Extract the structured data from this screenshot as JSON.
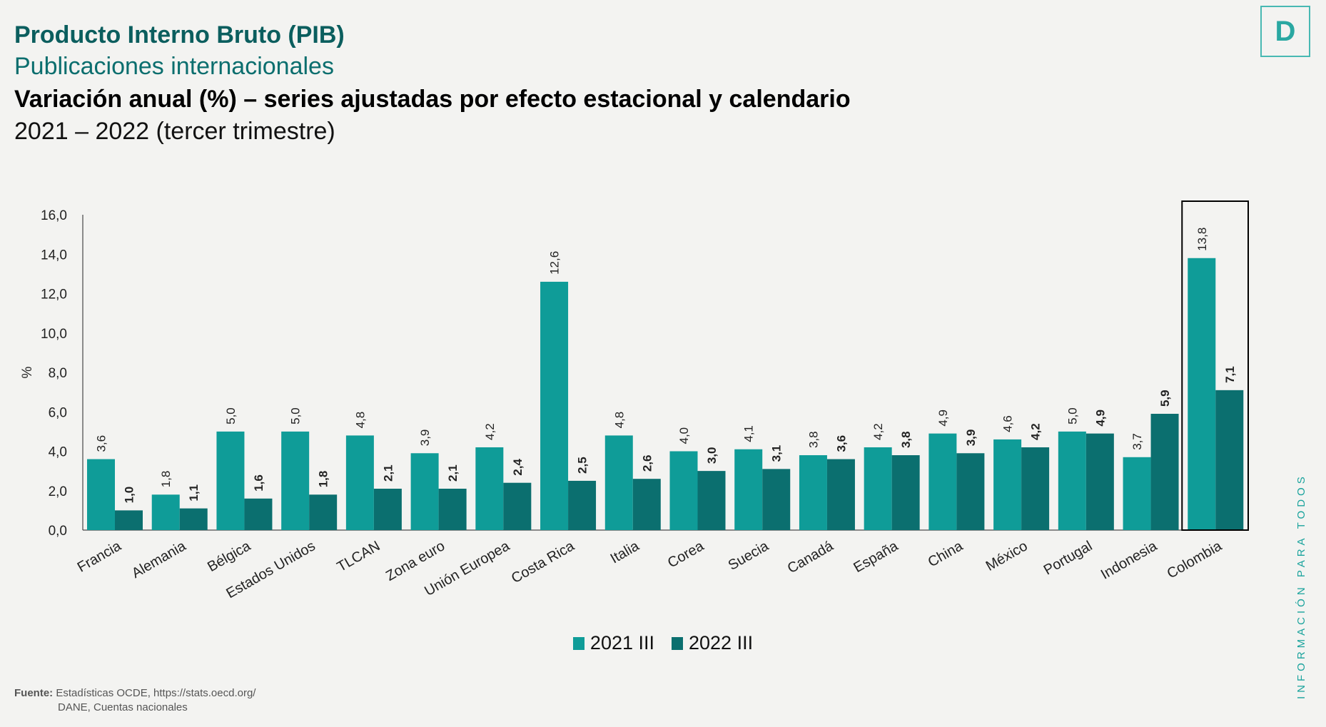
{
  "header": {
    "title": "Producto Interno Bruto (PIB)",
    "subtitle": "Publicaciones internacionales",
    "heading": "Variación anual (%) – series ajustadas por efecto estacional y calendario",
    "period": "2021 – 2022 (tercer trimestre)"
  },
  "logo": {
    "letter": "D"
  },
  "side_text": "INFORMACIÓN PARA TODOS",
  "source": {
    "label": "Fuente:",
    "line1": "Estadísticas OCDE,  https://stats.oecd.org/",
    "line2": "DANE, Cuentas nacionales"
  },
  "chart_data": {
    "type": "bar",
    "ylabel": "%",
    "ylim": [
      0,
      16
    ],
    "yticks": [
      "0,0",
      "2,0",
      "4,0",
      "6,0",
      "8,0",
      "10,0",
      "12,0",
      "14,0",
      "16,0"
    ],
    "grid": false,
    "legend_position": "bottom",
    "highlighted_category": "Colombia",
    "categories": [
      "Francia",
      "Alemania",
      "Bélgica",
      "Estados Unidos",
      "TLCAN",
      "Zona euro",
      "Unión Europea",
      "Costa Rica",
      "Italia",
      "Corea",
      "Suecia",
      "Canadá",
      "España",
      "China",
      "México",
      "Portugal",
      "Indonesia",
      "Colombia"
    ],
    "series": [
      {
        "name": "2021 III",
        "color": "#0f9c98",
        "values": [
          3.6,
          1.8,
          5.0,
          5.0,
          4.8,
          3.9,
          4.2,
          12.6,
          4.8,
          4.0,
          4.1,
          3.8,
          4.2,
          4.9,
          4.6,
          5.0,
          3.7,
          13.8
        ]
      },
      {
        "name": "2022 III",
        "color": "#0b6f6f",
        "values": [
          1.0,
          1.1,
          1.6,
          1.8,
          2.1,
          2.1,
          2.4,
          2.5,
          2.6,
          3.0,
          3.1,
          3.6,
          3.8,
          3.9,
          4.2,
          4.9,
          5.9,
          7.1
        ]
      }
    ]
  }
}
